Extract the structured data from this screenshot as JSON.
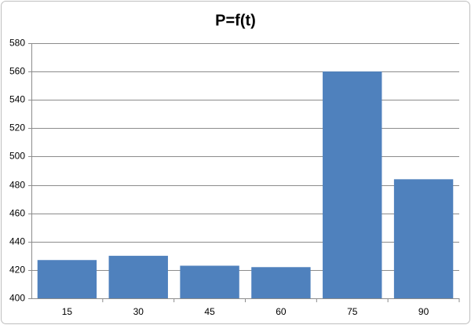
{
  "chart_data": {
    "type": "bar",
    "title": "P=f(t)",
    "categories": [
      "15",
      "30",
      "45",
      "60",
      "75",
      "90"
    ],
    "values": [
      427,
      430,
      423,
      422,
      560,
      484
    ],
    "color": "#4f81bd",
    "ylim": [
      400,
      580
    ],
    "yticks": [
      400,
      420,
      440,
      460,
      480,
      500,
      520,
      540,
      560,
      580
    ],
    "grid": true
  }
}
